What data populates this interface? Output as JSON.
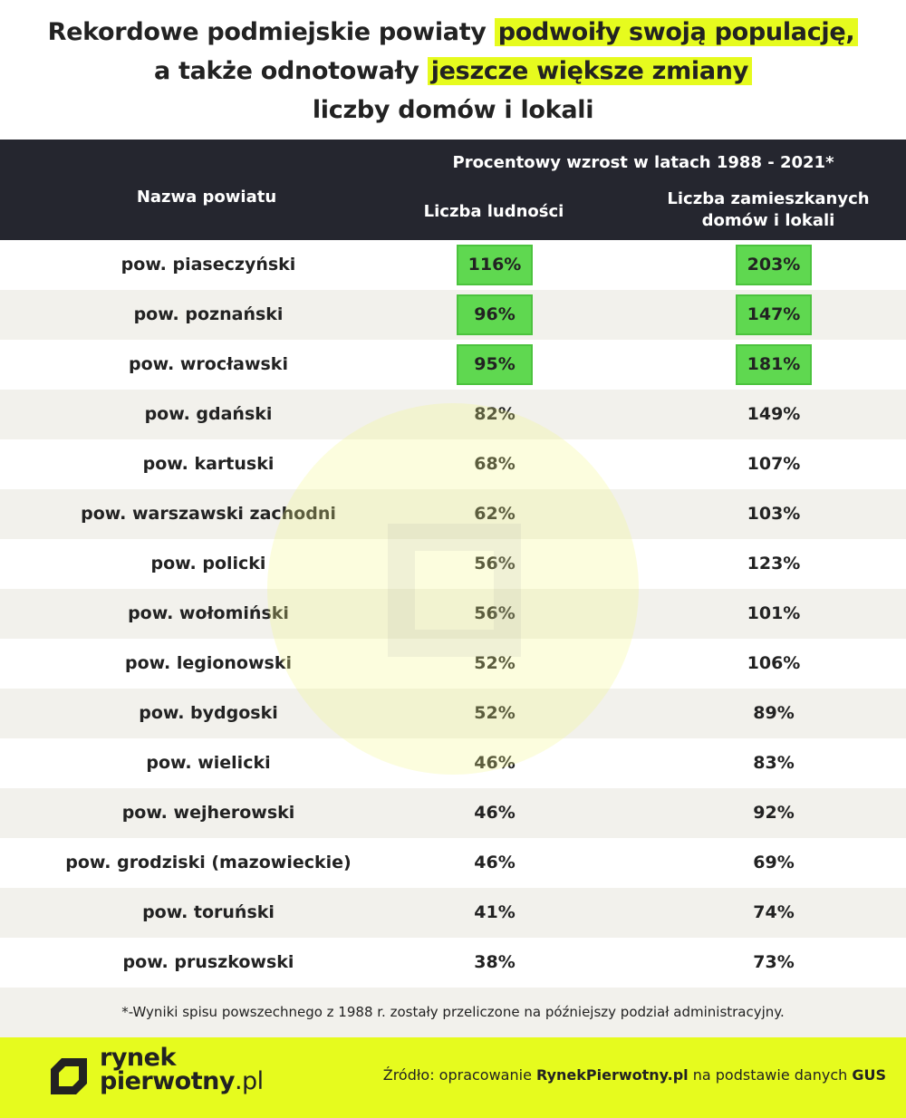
{
  "title": {
    "line1_plain": "Rekordowe podmiejskie powiaty ",
    "line1_highlight": "podwoiły swoją populację,",
    "line2_plain": "a także odnotowały ",
    "line2_highlight": "jeszcze większe zmiany",
    "line3": "liczby domów i lokali"
  },
  "header": {
    "name_col": "Nazwa powiatu",
    "group": "Procentowy wzrost w latach 1988 - 2021*",
    "col_population": "Liczba ludności",
    "col_housing_line1": "Liczba zamieszkanych",
    "col_housing_line2": "domów i lokali"
  },
  "chart_data": {
    "type": "table",
    "columns": [
      "Nazwa powiatu",
      "Liczba ludności",
      "Liczba zamieszkanych domów i lokali"
    ],
    "rows": [
      {
        "name": "pow. piaseczyński",
        "population": "116%",
        "housing": "203%",
        "highlight": true
      },
      {
        "name": "pow. poznański",
        "population": "96%",
        "housing": "147%",
        "highlight": true
      },
      {
        "name": "pow. wrocławski",
        "population": "95%",
        "housing": "181%",
        "highlight": true
      },
      {
        "name": "pow. gdański",
        "population": "82%",
        "housing": "149%",
        "highlight": false
      },
      {
        "name": "pow. kartuski",
        "population": "68%",
        "housing": "107%",
        "highlight": false
      },
      {
        "name": "pow. warszawski zachodni",
        "population": "62%",
        "housing": "103%",
        "highlight": false
      },
      {
        "name": "pow. policki",
        "population": "56%",
        "housing": "123%",
        "highlight": false
      },
      {
        "name": "pow. wołomiński",
        "population": "56%",
        "housing": "101%",
        "highlight": false
      },
      {
        "name": "pow. legionowski",
        "population": "52%",
        "housing": "106%",
        "highlight": false
      },
      {
        "name": "pow. bydgoski",
        "population": "52%",
        "housing": "89%",
        "highlight": false
      },
      {
        "name": "pow. wielicki",
        "population": "46%",
        "housing": "83%",
        "highlight": false
      },
      {
        "name": "pow. wejherowski",
        "population": "46%",
        "housing": "92%",
        "highlight": false
      },
      {
        "name": "pow. grodziski (mazowieckie)",
        "population": "46%",
        "housing": "69%",
        "highlight": false
      },
      {
        "name": "pow. toruński",
        "population": "41%",
        "housing": "74%",
        "highlight": false
      },
      {
        "name": "pow. pruszkowski",
        "population": "38%",
        "housing": "73%",
        "highlight": false
      }
    ]
  },
  "footnote": "*-Wyniki spisu powszechnego z 1988 r. zostały przeliczone na późniejszy podział administracyjny.",
  "footer": {
    "logo_line1": "rynek",
    "logo_line2_bold": "pierwotny",
    "logo_line2_light": ".pl",
    "source_prefix": "Źródło: opracowanie ",
    "source_brand": "RynekPierwotny.pl",
    "source_middle": " na podstawie danych ",
    "source_org": "GUS"
  },
  "colors": {
    "accent_yellow": "#e6fb1e",
    "header_dark": "#25262f",
    "highlight_green": "#5fd850",
    "row_alt": "#f2f1ec"
  }
}
